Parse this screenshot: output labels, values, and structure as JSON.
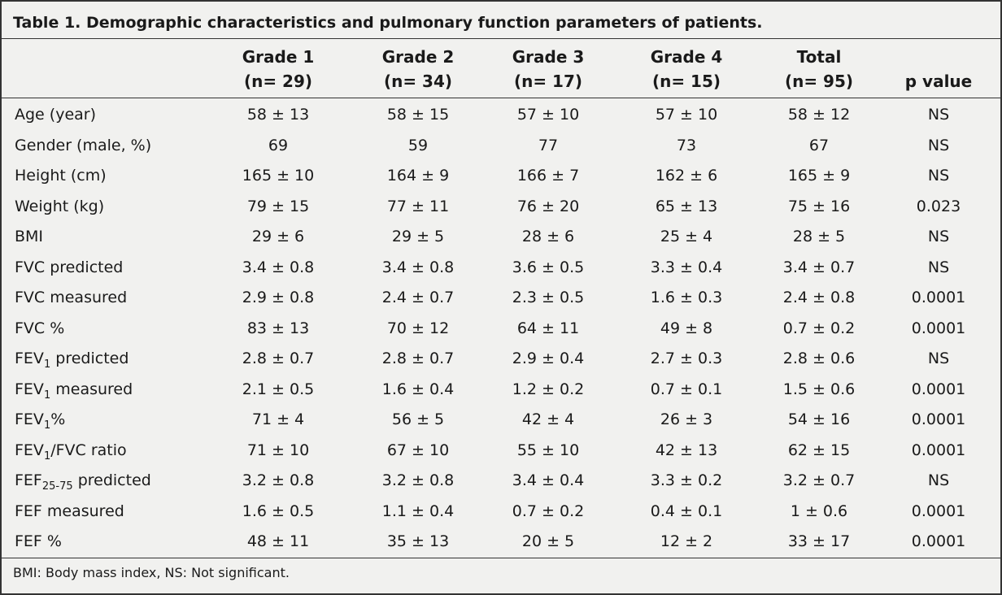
{
  "title": "Table 1. Demographic characteristics and pulmonary function parameters of patients.",
  "table": {
    "columns": [
      [
        "Grade 1",
        "(n= 29)"
      ],
      [
        "Grade 2",
        "(n= 34)"
      ],
      [
        "Grade 3",
        "(n= 17)"
      ],
      [
        "Grade 4",
        "(n= 15)"
      ],
      [
        "Total",
        "(n= 95)"
      ],
      [
        "p value"
      ]
    ],
    "rows": [
      {
        "label": [
          "Age (year)"
        ],
        "cells": [
          "58 ± 13",
          "58 ± 15",
          "57 ± 10",
          "57 ± 10",
          "58 ± 12",
          "NS"
        ]
      },
      {
        "label": [
          "Gender (male, %)"
        ],
        "cells": [
          "69",
          "59",
          "77",
          "73",
          "67",
          "NS"
        ]
      },
      {
        "label": [
          "Height (cm)"
        ],
        "cells": [
          "165 ± 10",
          "164 ± 9",
          "166 ± 7",
          "162 ± 6",
          "165 ± 9",
          "NS"
        ]
      },
      {
        "label": [
          "Weight (kg)"
        ],
        "cells": [
          "79 ± 15",
          "77 ± 11",
          "76 ± 20",
          "65 ± 13",
          "75 ± 16",
          "0.023"
        ]
      },
      {
        "label": [
          "BMI"
        ],
        "cells": [
          "29 ± 6",
          "29 ± 5",
          "28 ± 6",
          "25 ± 4",
          "28 ± 5",
          "NS"
        ]
      },
      {
        "label": [
          "FVC predicted"
        ],
        "cells": [
          "3.4 ± 0.8",
          "3.4 ± 0.8",
          "3.6 ± 0.5",
          "3.3 ± 0.4",
          "3.4 ± 0.7",
          "NS"
        ]
      },
      {
        "label": [
          "FVC measured"
        ],
        "cells": [
          "2.9 ± 0.8",
          "2.4 ± 0.7",
          "2.3 ± 0.5",
          "1.6 ± 0.3",
          "2.4 ± 0.8",
          "0.0001"
        ]
      },
      {
        "label": [
          "FVC %"
        ],
        "cells": [
          "83 ± 13",
          "70 ± 12",
          "64 ± 11",
          "49 ± 8",
          "0.7 ± 0.2",
          "0.0001"
        ]
      },
      {
        "label": [
          "FEV",
          "1",
          " predicted"
        ],
        "cells": [
          "2.8 ± 0.7",
          "2.8 ± 0.7",
          "2.9 ± 0.4",
          "2.7 ± 0.3",
          "2.8 ± 0.6",
          "NS"
        ]
      },
      {
        "label": [
          "FEV",
          "1",
          " measured"
        ],
        "cells": [
          "2.1 ± 0.5",
          "1.6 ± 0.4",
          "1.2 ± 0.2",
          "0.7 ± 0.1",
          "1.5 ± 0.6",
          "0.0001"
        ]
      },
      {
        "label": [
          "FEV",
          "1",
          "%"
        ],
        "cells": [
          "71 ± 4",
          "56 ± 5",
          "42 ± 4",
          "26 ± 3",
          "54 ± 16",
          "0.0001"
        ]
      },
      {
        "label": [
          "FEV",
          "1",
          "/FVC ratio"
        ],
        "cells": [
          "71 ± 10",
          "67 ± 10",
          "55 ± 10",
          "42 ± 13",
          "62 ± 15",
          "0.0001"
        ]
      },
      {
        "label": [
          "FEF",
          "25-75",
          " predicted"
        ],
        "cells": [
          "3.2 ± 0.8",
          "3.2 ± 0.8",
          "3.4 ± 0.4",
          "3.3 ± 0.2",
          "3.2 ± 0.7",
          "NS"
        ]
      },
      {
        "label": [
          "FEF measured"
        ],
        "cells": [
          "1.6 ± 0.5",
          "1.1 ± 0.4",
          "0.7 ± 0.2",
          "0.4 ± 0.1",
          "1 ± 0.6",
          "0.0001"
        ]
      },
      {
        "label": [
          "FEF %"
        ],
        "cells": [
          "48 ± 11",
          "35 ± 13",
          "20 ± 5",
          "12 ± 2",
          "33 ± 17",
          "0.0001"
        ]
      }
    ]
  },
  "footnote": "BMI: Body mass index, NS: Not significant."
}
